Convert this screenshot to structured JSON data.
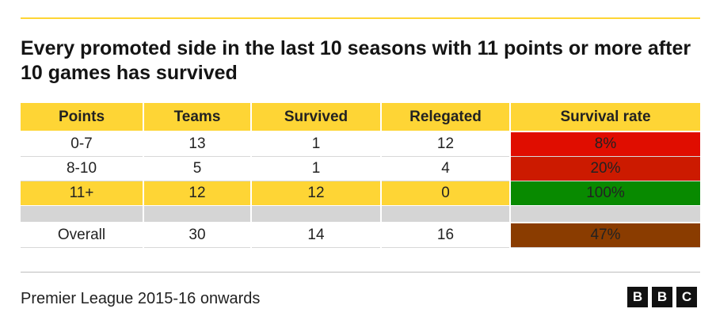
{
  "title": "Every promoted side in the last 10 seasons with 11 points or more after 10 games has survived",
  "source": "Premier League 2015-16 onwards",
  "logo_letters": [
    "B",
    "B",
    "C"
  ],
  "colors": {
    "accent": "#fed535",
    "rate_low": "#e00d00",
    "rate_mid": "#cc1a00",
    "rate_high": "#088a00",
    "rate_overall": "#8a3c00",
    "spacer": "#d5d5d5"
  },
  "chart_data": {
    "type": "table",
    "columns": [
      "Points",
      "Teams",
      "Survived",
      "Relegated",
      "Survival rate"
    ],
    "rows": [
      {
        "points": "0-7",
        "teams": "13",
        "survived": "1",
        "relegated": "12",
        "rate": "8%",
        "rate_value": 8,
        "rate_color": "#e00d00",
        "highlight": false
      },
      {
        "points": "8-10",
        "teams": "5",
        "survived": "1",
        "relegated": "4",
        "rate": "20%",
        "rate_value": 20,
        "rate_color": "#cc1a00",
        "highlight": false
      },
      {
        "points": "11+",
        "teams": "12",
        "survived": "12",
        "relegated": "0",
        "rate": "100%",
        "rate_value": 100,
        "rate_color": "#088a00",
        "highlight": true
      }
    ],
    "overall": {
      "points": "Overall",
      "teams": "30",
      "survived": "14",
      "relegated": "16",
      "rate": "47%",
      "rate_value": 47,
      "rate_color": "#8a3c00"
    }
  }
}
